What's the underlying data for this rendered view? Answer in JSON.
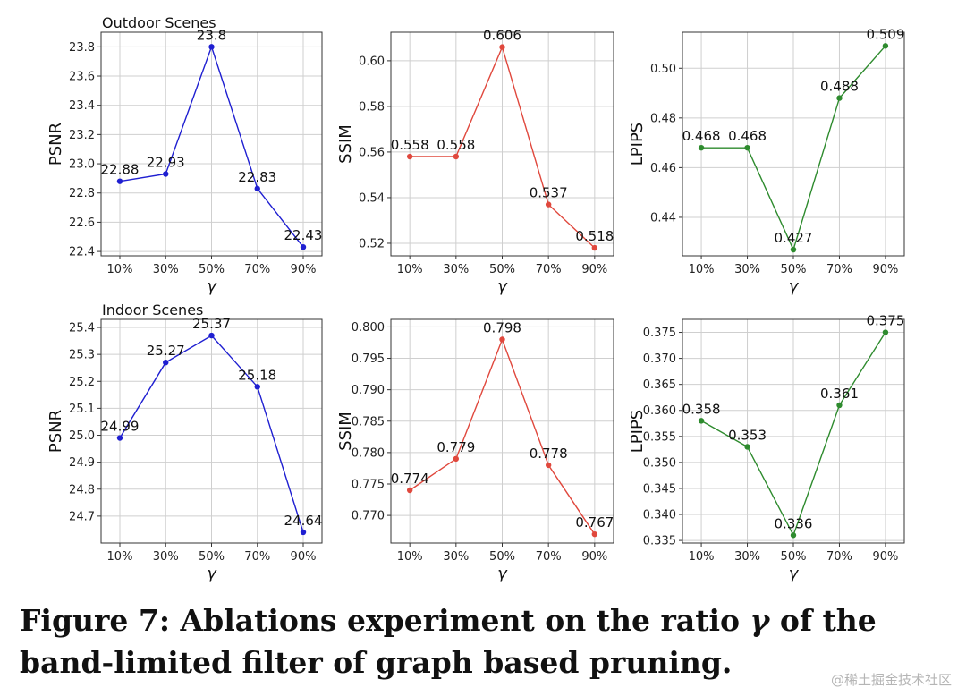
{
  "caption": {
    "part1": "Figure 7: Ablations experiment on the ratio ",
    "gamma": "γ",
    "part2": " of the band-limited filter of graph based pruning."
  },
  "watermark": "@稀土掘金技术社区",
  "chart_data": [
    {
      "type": "line",
      "title": "Outdoor Scenes",
      "xlabel": "γ",
      "ylabel": "PSNR",
      "categories": [
        "10%",
        "30%",
        "50%",
        "70%",
        "90%"
      ],
      "values": [
        22.88,
        22.93,
        23.8,
        22.83,
        22.43
      ],
      "labels": [
        "22.88",
        "22.93",
        "23.8",
        "22.83",
        "22.43"
      ],
      "ylim": [
        22.37,
        23.9
      ],
      "yticks": [
        "22.4",
        "22.6",
        "22.8",
        "23.0",
        "23.2",
        "23.4",
        "23.6",
        "23.8"
      ],
      "color": "#1f1fd1",
      "grid": true
    },
    {
      "type": "line",
      "title": "",
      "xlabel": "γ",
      "ylabel": "SSIM",
      "categories": [
        "10%",
        "30%",
        "50%",
        "70%",
        "90%"
      ],
      "values": [
        0.558,
        0.558,
        0.606,
        0.537,
        0.518
      ],
      "labels": [
        "0.558",
        "0.558",
        "0.606",
        "0.537",
        "0.518"
      ],
      "ylim": [
        0.5145,
        0.6125
      ],
      "yticks": [
        "0.52",
        "0.54",
        "0.56",
        "0.58",
        "0.60"
      ],
      "color": "#e0483d",
      "grid": true
    },
    {
      "type": "line",
      "title": "",
      "xlabel": "γ",
      "ylabel": "LPIPS",
      "categories": [
        "10%",
        "30%",
        "50%",
        "70%",
        "90%"
      ],
      "values": [
        0.468,
        0.468,
        0.427,
        0.488,
        0.509
      ],
      "labels": [
        "0.468",
        "0.468",
        "0.427",
        "0.488",
        "0.509"
      ],
      "ylim": [
        0.4245,
        0.5145
      ],
      "yticks": [
        "0.44",
        "0.46",
        "0.48",
        "0.50"
      ],
      "color": "#2e8b2e",
      "grid": true
    },
    {
      "type": "line",
      "title": "Indoor Scenes",
      "xlabel": "γ",
      "ylabel": "PSNR",
      "categories": [
        "10%",
        "30%",
        "50%",
        "70%",
        "90%"
      ],
      "values": [
        24.99,
        25.27,
        25.37,
        25.18,
        24.64
      ],
      "labels": [
        "24.99",
        "25.27",
        "25.37",
        "25.18",
        "24.64"
      ],
      "ylim": [
        24.6,
        25.43
      ],
      "yticks": [
        "24.7",
        "24.8",
        "24.9",
        "25.0",
        "25.1",
        "25.2",
        "25.3",
        "25.4"
      ],
      "color": "#1f1fd1",
      "grid": true
    },
    {
      "type": "line",
      "title": "",
      "xlabel": "γ",
      "ylabel": "SSIM",
      "categories": [
        "10%",
        "30%",
        "50%",
        "70%",
        "90%"
      ],
      "values": [
        0.774,
        0.779,
        0.798,
        0.778,
        0.767
      ],
      "labels": [
        "0.774",
        "0.779",
        "0.798",
        "0.778",
        "0.767"
      ],
      "ylim": [
        0.7656,
        0.8012
      ],
      "yticks": [
        "0.770",
        "0.775",
        "0.780",
        "0.785",
        "0.790",
        "0.795",
        "0.800"
      ],
      "color": "#e0483d",
      "grid": true
    },
    {
      "type": "line",
      "title": "",
      "xlabel": "γ",
      "ylabel": "LPIPS",
      "categories": [
        "10%",
        "30%",
        "50%",
        "70%",
        "90%"
      ],
      "values": [
        0.358,
        0.353,
        0.336,
        0.361,
        0.375
      ],
      "labels": [
        "0.358",
        "0.353",
        "0.336",
        "0.361",
        "0.375"
      ],
      "ylim": [
        0.3345,
        0.3775
      ],
      "yticks": [
        "0.335",
        "0.340",
        "0.345",
        "0.350",
        "0.355",
        "0.360",
        "0.365",
        "0.370",
        "0.375"
      ],
      "color": "#2e8b2e",
      "grid": true
    }
  ]
}
